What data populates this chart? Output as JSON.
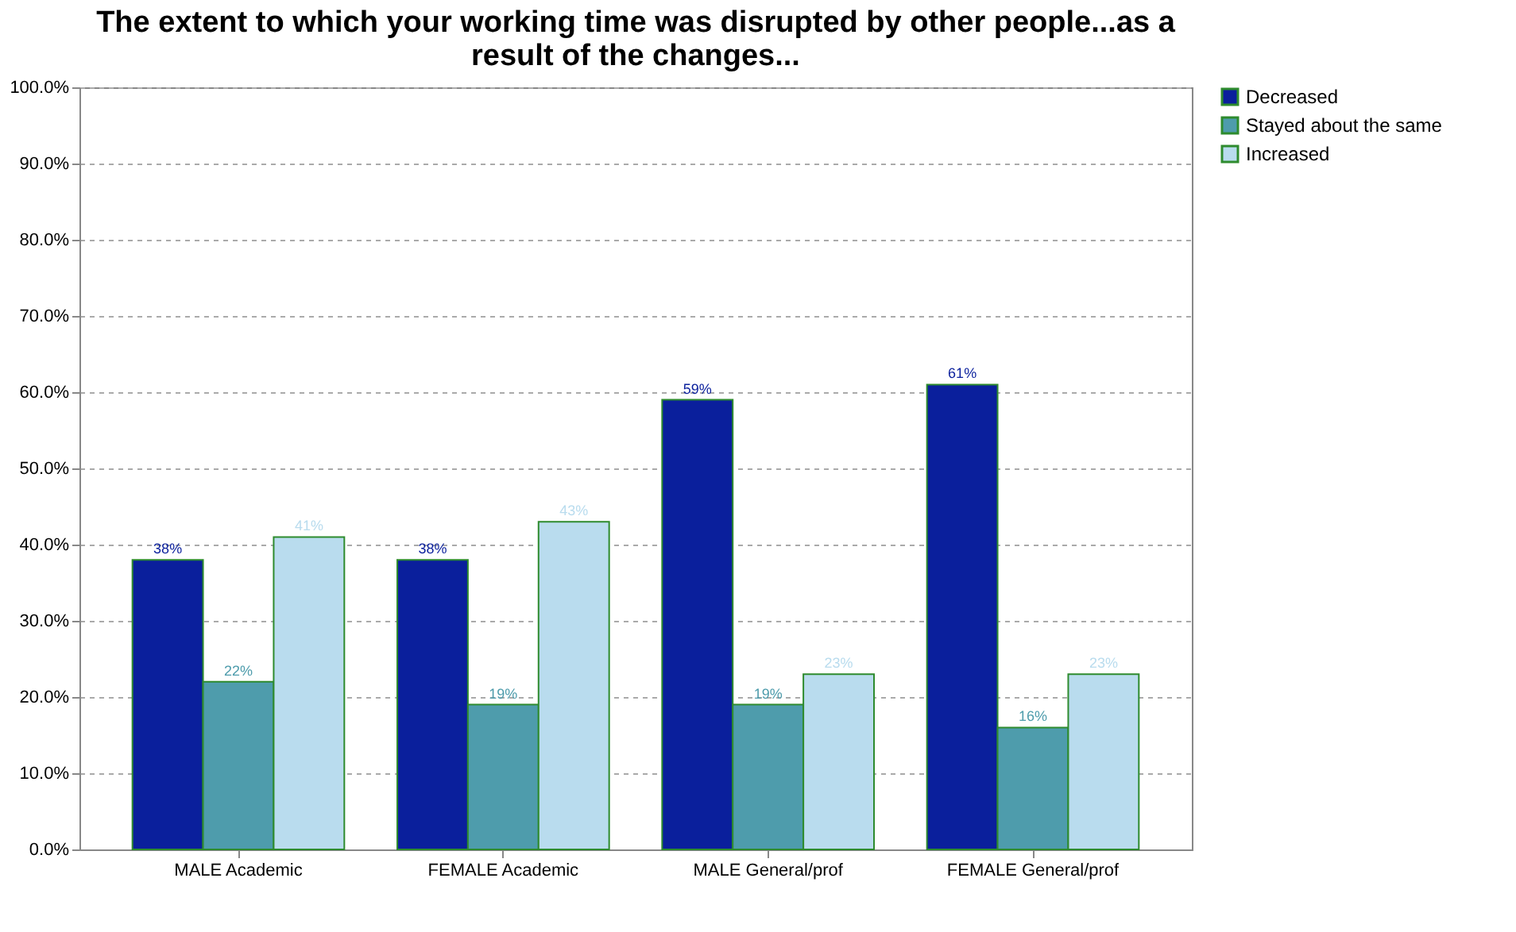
{
  "chart_data": {
    "type": "bar",
    "title": "The extent to which your working time was disrupted by other people...as a result of the changes...",
    "categories": [
      "MALE Academic",
      "FEMALE Academic",
      "MALE General/prof",
      "FEMALE General/prof"
    ],
    "series": [
      {
        "name": "Decreased",
        "color": "#0a1f9c",
        "values": [
          38,
          38,
          59,
          61
        ],
        "value_labels": [
          "38%",
          "38%",
          "59%",
          "61%"
        ]
      },
      {
        "name": "Stayed about the same",
        "color": "#4e9cac",
        "values": [
          22,
          19,
          19,
          16
        ],
        "value_labels": [
          "22%",
          "19%",
          "19%",
          "16%"
        ]
      },
      {
        "name": "Increased",
        "color": "#b9dcee",
        "values": [
          41,
          43,
          23,
          23
        ],
        "value_labels": [
          "41%",
          "43%",
          "23%",
          "23%"
        ]
      }
    ],
    "ylim": [
      0,
      100
    ],
    "yticks": [
      {
        "value": 0,
        "label": "0.0%"
      },
      {
        "value": 10,
        "label": "10.0%"
      },
      {
        "value": 20,
        "label": "20.0%"
      },
      {
        "value": 30,
        "label": "30.0%"
      },
      {
        "value": 40,
        "label": "40.0%"
      },
      {
        "value": 50,
        "label": "50.0%"
      },
      {
        "value": 60,
        "label": "60.0%"
      },
      {
        "value": 70,
        "label": "70.0%"
      },
      {
        "value": 80,
        "label": "80.0%"
      },
      {
        "value": 90,
        "label": "90.0%"
      },
      {
        "value": 100,
        "label": "100.0%"
      }
    ],
    "grid": "y",
    "legend": "right"
  }
}
